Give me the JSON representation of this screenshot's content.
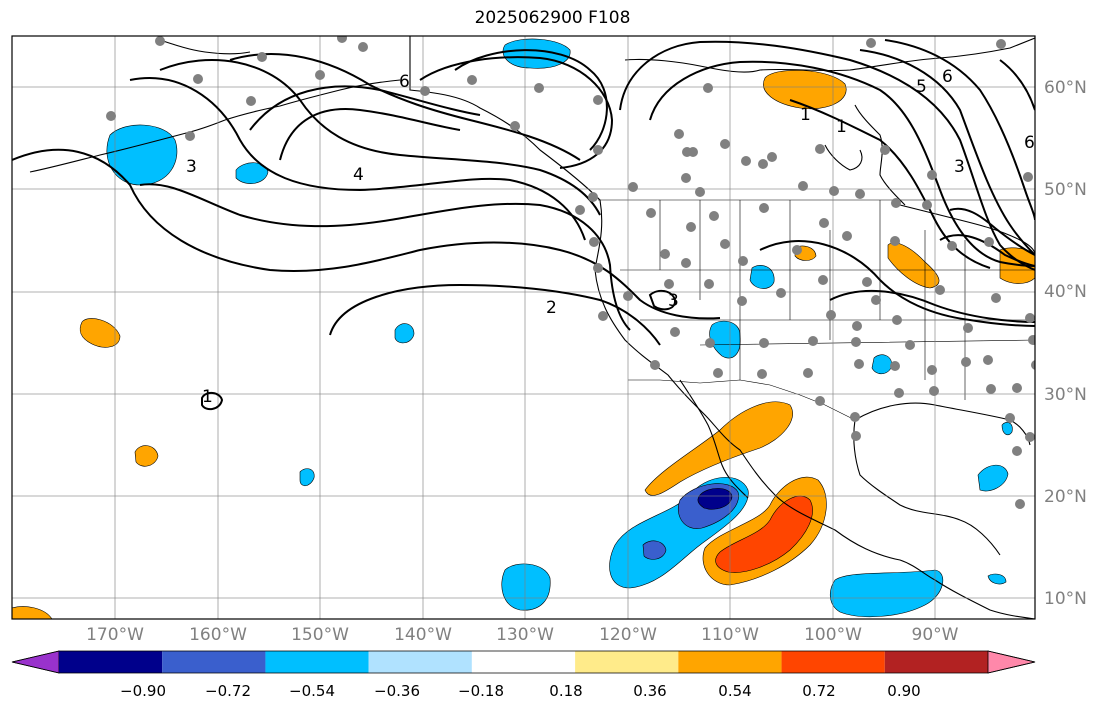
{
  "title": "2025062900 F108",
  "map": {
    "lon_ticks": [
      "170°W",
      "160°W",
      "150°W",
      "140°W",
      "130°W",
      "120°W",
      "110°W",
      "100°W",
      "90°W"
    ],
    "lat_ticks": [
      "60°N",
      "50°N",
      "40°N",
      "30°N",
      "20°N",
      "10°N"
    ],
    "contour_labels": [
      "6",
      "6",
      "5",
      "6",
      "4",
      "3",
      "3",
      "2",
      "1",
      "1",
      "3",
      "1"
    ]
  },
  "colorbar": {
    "labels": [
      "−0.90",
      "−0.72",
      "−0.54",
      "−0.36",
      "−0.18",
      "0.18",
      "0.36",
      "0.54",
      "0.72",
      "0.90"
    ],
    "colors": [
      "#9932cc",
      "#00008b",
      "#3a5fcd",
      "#00bfff",
      "#b0e2ff",
      "#ffffff",
      "#ffeb8a",
      "#ffa500",
      "#ff4500",
      "#b22222",
      "#ff88aa"
    ]
  }
}
